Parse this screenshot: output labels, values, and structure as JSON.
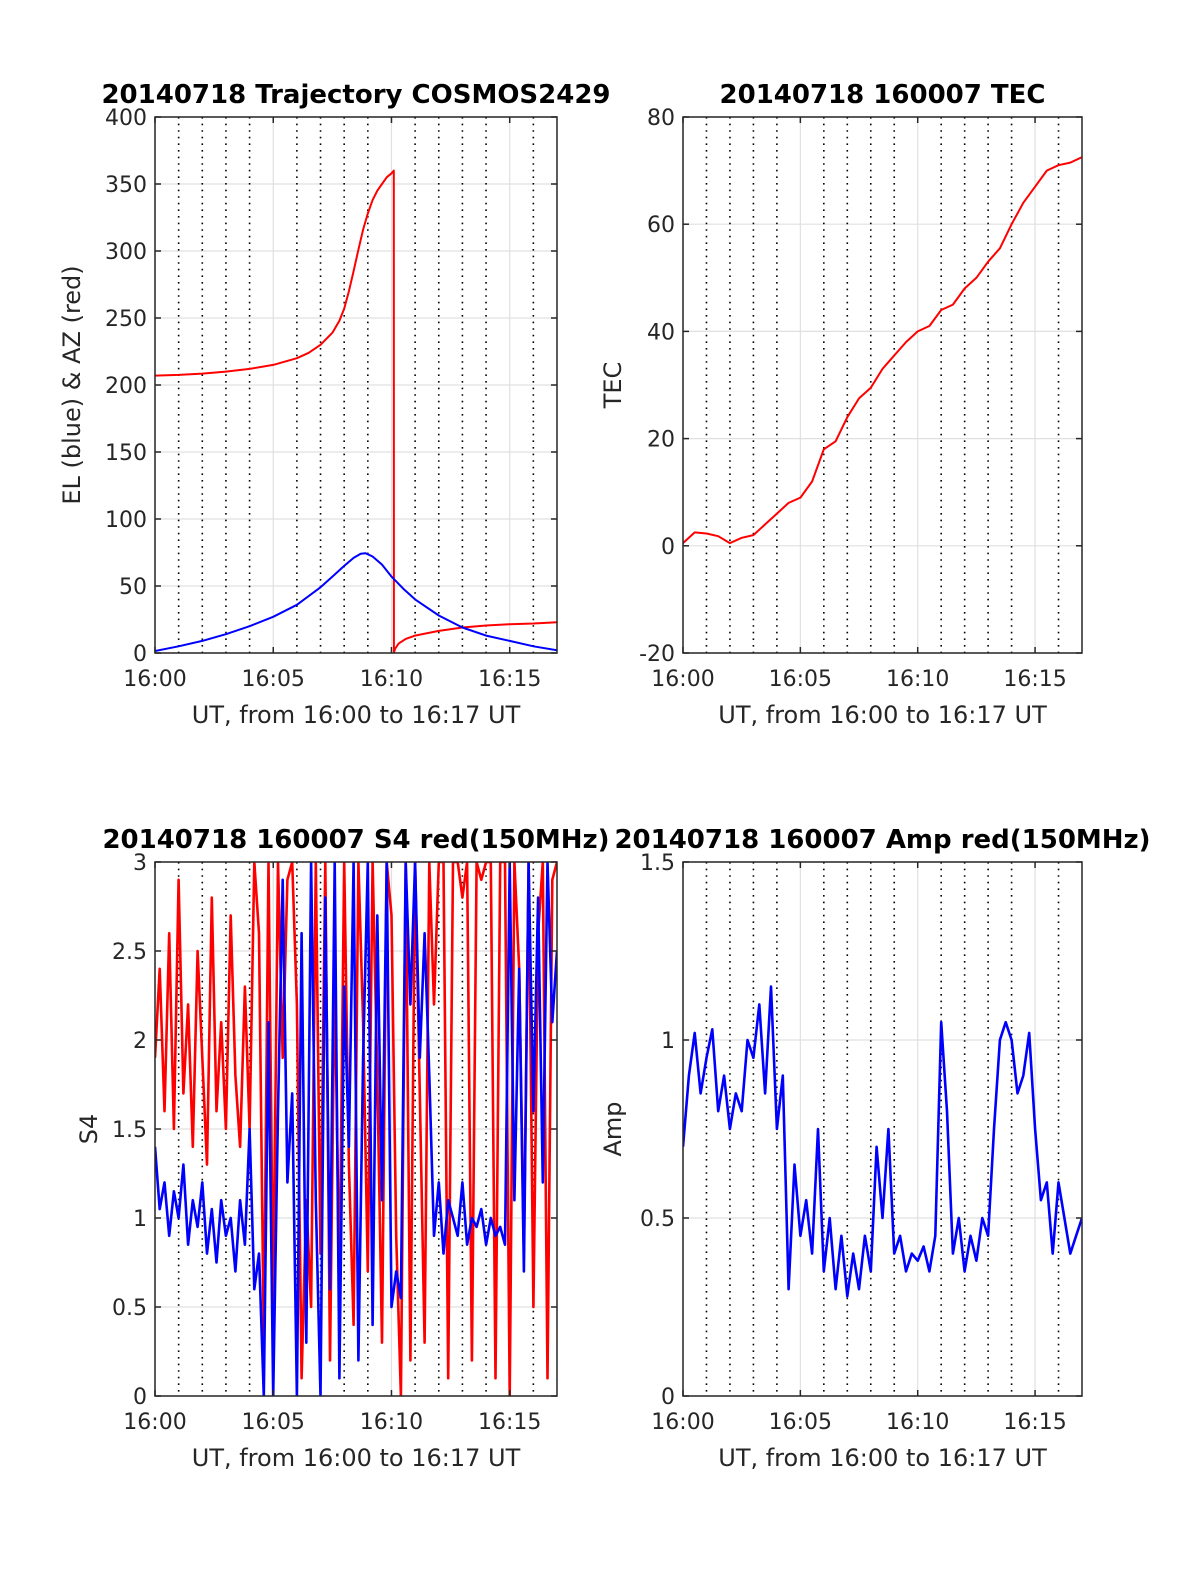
{
  "chart_data": [
    {
      "type": "line",
      "title": "20140718 Trajectory COSMOS2429",
      "xlabel": "UT, from 16:00 to 16:17 UT",
      "ylabel": "EL (blue) & AZ (red)",
      "x_unit": "minutes after 16:00 UT",
      "xlim": [
        0,
        17
      ],
      "ylim": [
        0,
        400
      ],
      "xticks": [
        0,
        5,
        10,
        15
      ],
      "xtick_labels": [
        "16:00",
        "16:05",
        "16:10",
        "16:15"
      ],
      "yticks": [
        0,
        50,
        100,
        150,
        200,
        250,
        300,
        350,
        400
      ],
      "ytick_labels": [
        "0",
        "50",
        "100",
        "150",
        "200",
        "250",
        "300",
        "350",
        "400"
      ],
      "minor_x_gridlines": [
        1,
        2,
        3,
        4,
        6,
        7,
        8,
        9,
        11,
        12,
        13,
        14,
        16
      ],
      "grid": true,
      "series": [
        {
          "color": "#ff0000",
          "x": [
            0,
            1,
            2,
            3,
            4,
            5,
            6,
            6.5,
            7,
            7.5,
            7.8,
            8,
            8.2,
            8.4,
            8.6,
            8.8,
            9,
            9.2,
            9.4,
            9.6,
            9.8,
            10.0,
            10.1,
            10.101,
            10.15,
            10.3,
            10.6,
            11,
            12,
            13,
            14,
            15,
            16,
            17
          ],
          "y": [
            207,
            207.5,
            208.5,
            210,
            212,
            215,
            220,
            224,
            230,
            239,
            248,
            257,
            270,
            285,
            301,
            316,
            328,
            338,
            345,
            350,
            355,
            358,
            360,
            0,
            3,
            7,
            10.5,
            13,
            16.5,
            19,
            20.5,
            21.5,
            22,
            23
          ]
        },
        {
          "color": "#0000ff",
          "x": [
            0,
            1,
            2,
            3,
            4,
            5,
            6,
            7,
            7.5,
            8,
            8.4,
            8.7,
            8.9,
            9.2,
            9.6,
            10,
            10.5,
            11,
            12,
            13,
            14,
            15,
            16,
            17
          ],
          "y": [
            1.5,
            5,
            9,
            14,
            20,
            27,
            36,
            49,
            57,
            65,
            71,
            74,
            74.5,
            72,
            66,
            57,
            48,
            40,
            28,
            19,
            13,
            9,
            5,
            2
          ]
        }
      ]
    },
    {
      "type": "line",
      "title": "20140718 160007 TEC",
      "xlabel": "UT, from 16:00 to 16:17 UT",
      "ylabel": "TEC",
      "x_unit": "minutes after 16:00 UT",
      "xlim": [
        0,
        17
      ],
      "ylim": [
        -20,
        80
      ],
      "xticks": [
        0,
        5,
        10,
        15
      ],
      "xtick_labels": [
        "16:00",
        "16:05",
        "16:10",
        "16:15"
      ],
      "yticks": [
        -20,
        0,
        20,
        40,
        60,
        80
      ],
      "ytick_labels": [
        "-20",
        "0",
        "20",
        "40",
        "60",
        "80"
      ],
      "minor_x_gridlines": [
        1,
        2,
        3,
        4,
        6,
        7,
        8,
        9,
        11,
        12,
        13,
        14,
        16
      ],
      "grid": true,
      "series": [
        {
          "color": "#ff0000",
          "x": [
            0,
            0.5,
            1,
            1.5,
            2,
            2.5,
            3,
            3.5,
            4,
            4.5,
            5,
            5.5,
            6,
            6.5,
            7,
            7.5,
            8,
            8.5,
            9,
            9.5,
            10,
            10.5,
            11,
            11.5,
            12,
            12.5,
            13,
            13.5,
            14,
            14.5,
            15,
            15.5,
            16,
            16.5,
            17
          ],
          "y": [
            0.5,
            2.5,
            2.3,
            1.8,
            0.5,
            1.5,
            2,
            4,
            6,
            8,
            9,
            12,
            18,
            19.5,
            24,
            27.5,
            29.5,
            33,
            35.5,
            38,
            40,
            41,
            44,
            45,
            48,
            50,
            53,
            55.5,
            60,
            64,
            67,
            70,
            71,
            71.5,
            72.5
          ]
        }
      ]
    },
    {
      "type": "line",
      "title": "20140718 160007 S4 red(150MHz)",
      "xlabel": "UT, from 16:00 to 16:17 UT",
      "ylabel": "S4",
      "x_unit": "minutes after 16:00 UT",
      "xlim": [
        0,
        17
      ],
      "ylim": [
        0,
        3
      ],
      "xticks": [
        0,
        5,
        10,
        15
      ],
      "xtick_labels": [
        "16:00",
        "16:05",
        "16:10",
        "16:15"
      ],
      "yticks": [
        0,
        0.5,
        1,
        1.5,
        2,
        2.5,
        3
      ],
      "ytick_labels": [
        "0",
        "0.5",
        "1",
        "1.5",
        "2",
        "2.5",
        "3"
      ],
      "minor_x_gridlines": [
        1,
        2,
        3,
        4,
        6,
        7,
        8,
        9,
        11,
        12,
        13,
        14,
        16
      ],
      "grid": true,
      "series": [
        {
          "color": "#ff0000",
          "x": [
            0,
            0.2,
            0.4,
            0.6,
            0.8,
            1,
            1.2,
            1.4,
            1.6,
            1.8,
            2,
            2.2,
            2.4,
            2.6,
            2.8,
            3,
            3.2,
            3.4,
            3.6,
            3.8,
            4,
            4.2,
            4.4,
            4.6,
            4.8,
            5,
            5.2,
            5.4,
            5.6,
            5.8,
            6,
            6.2,
            6.4,
            6.6,
            6.8,
            7,
            7.2,
            7.4,
            7.6,
            7.8,
            8,
            8.2,
            8.4,
            8.6,
            8.8,
            9,
            9.2,
            9.4,
            9.6,
            9.8,
            10,
            10.2,
            10.4,
            10.6,
            10.8,
            11,
            11.2,
            11.4,
            11.6,
            11.8,
            12,
            12.2,
            12.4,
            12.6,
            12.8,
            13,
            13.2,
            13.4,
            13.6,
            13.8,
            14,
            14.2,
            14.4,
            14.6,
            14.8,
            15,
            15.2,
            15.4,
            15.6,
            15.8,
            16,
            16.2,
            16.4,
            16.6,
            16.8,
            17
          ],
          "y": [
            1.9,
            2.4,
            1.6,
            2.6,
            1.5,
            2.9,
            1.7,
            2.2,
            1.4,
            2.5,
            1.9,
            1.3,
            2.8,
            1.6,
            2.1,
            1.5,
            2.7,
            1.8,
            1.4,
            2.3,
            1.5,
            3,
            2.6,
            0.3,
            3,
            0.5,
            3,
            1.9,
            2.9,
            3,
            2.2,
            0.1,
            1.1,
            0.5,
            3,
            0.8,
            3,
            0.2,
            2.4,
            0.6,
            3,
            1.3,
            0.4,
            3,
            2.1,
            0.7,
            3,
            1.8,
            0.3,
            3,
            2.7,
            0.9,
            0,
            3,
            0.2,
            3,
            1.7,
            0.3,
            3,
            2.2,
            3,
            3,
            0.1,
            3,
            3,
            2.8,
            3,
            0.2,
            3,
            2.9,
            3,
            3,
            0.1,
            3,
            3,
            0,
            3,
            2.4,
            0.8,
            3,
            0.5,
            2.6,
            3,
            0.1,
            2.9,
            3
          ]
        },
        {
          "color": "#0000ff",
          "x": [
            0,
            0.2,
            0.4,
            0.6,
            0.8,
            1,
            1.2,
            1.4,
            1.6,
            1.8,
            2,
            2.2,
            2.4,
            2.6,
            2.8,
            3,
            3.2,
            3.4,
            3.6,
            3.8,
            4,
            4.2,
            4.4,
            4.6,
            4.8,
            5,
            5.2,
            5.4,
            5.6,
            5.8,
            6,
            6.2,
            6.4,
            6.6,
            6.8,
            7,
            7.2,
            7.4,
            7.6,
            7.8,
            8,
            8.2,
            8.4,
            8.6,
            8.8,
            9,
            9.2,
            9.4,
            9.6,
            9.8,
            10,
            10.2,
            10.4,
            10.6,
            10.8,
            11,
            11.2,
            11.4,
            11.6,
            11.8,
            12,
            12.2,
            12.4,
            12.6,
            12.8,
            13,
            13.2,
            13.4,
            13.6,
            13.8,
            14,
            14.2,
            14.4,
            14.6,
            14.8,
            15,
            15.2,
            15.4,
            15.6,
            15.8,
            16,
            16.2,
            16.4,
            16.6,
            16.8,
            17
          ],
          "y": [
            1.4,
            1.05,
            1.2,
            0.9,
            1.15,
            1.0,
            1.3,
            0.85,
            1.1,
            0.95,
            1.2,
            0.8,
            1.05,
            0.75,
            1.1,
            0.9,
            1.0,
            0.7,
            1.1,
            0.85,
            1.5,
            0.6,
            0.8,
            0,
            2.1,
            0,
            1.6,
            2.9,
            1.2,
            1.7,
            0,
            2.6,
            0.3,
            3,
            1.1,
            0,
            2.8,
            0.6,
            3,
            0.1,
            2.3,
            1.4,
            3,
            0.2,
            1.9,
            3,
            0.4,
            2.7,
            1.1,
            3,
            0.5,
            0.7,
            0.55,
            3,
            2.2,
            3,
            1.9,
            2.6,
            1.8,
            0.9,
            1.2,
            0.8,
            1.1,
            1.0,
            0.9,
            1.2,
            0.85,
            1.0,
            0.95,
            1.05,
            0.85,
            1.0,
            0.9,
            0.95,
            0.85,
            3,
            1.1,
            2.4,
            0.7,
            3,
            1.6,
            2.8,
            1.2,
            3,
            2.1,
            2.5
          ]
        }
      ]
    },
    {
      "type": "line",
      "title": "20140718 160007 Amp red(150MHz)",
      "xlabel": "UT, from 16:00 to 16:17 UT",
      "ylabel": "Amp",
      "x_unit": "minutes after 16:00 UT",
      "xlim": [
        0,
        17
      ],
      "ylim": [
        0,
        1.5
      ],
      "xticks": [
        0,
        5,
        10,
        15
      ],
      "xtick_labels": [
        "16:00",
        "16:05",
        "16:10",
        "16:15"
      ],
      "yticks": [
        0,
        0.5,
        1,
        1.5
      ],
      "ytick_labels": [
        "0",
        "0.5",
        "1",
        "1.5"
      ],
      "minor_x_gridlines": [
        1,
        2,
        3,
        4,
        6,
        7,
        8,
        9,
        11,
        12,
        13,
        14,
        16
      ],
      "grid": true,
      "series": [
        {
          "color": "#0000ff",
          "x": [
            0,
            0.25,
            0.5,
            0.75,
            1,
            1.25,
            1.5,
            1.75,
            2,
            2.25,
            2.5,
            2.75,
            3,
            3.25,
            3.5,
            3.75,
            4,
            4.25,
            4.5,
            4.75,
            5,
            5.25,
            5.5,
            5.75,
            6,
            6.25,
            6.5,
            6.75,
            7,
            7.25,
            7.5,
            7.75,
            8,
            8.25,
            8.5,
            8.75,
            9,
            9.25,
            9.5,
            9.75,
            10,
            10.25,
            10.5,
            10.75,
            11,
            11.25,
            11.5,
            11.75,
            12,
            12.25,
            12.5,
            12.75,
            13,
            13.25,
            13.5,
            13.75,
            14,
            14.25,
            14.5,
            14.75,
            15,
            15.25,
            15.5,
            15.75,
            16,
            16.25,
            16.5,
            16.75,
            17
          ],
          "y": [
            0.7,
            0.9,
            1.02,
            0.85,
            0.95,
            1.03,
            0.8,
            0.9,
            0.75,
            0.85,
            0.8,
            1.0,
            0.95,
            1.1,
            0.85,
            1.15,
            0.75,
            0.9,
            0.3,
            0.65,
            0.45,
            0.55,
            0.4,
            0.75,
            0.35,
            0.5,
            0.3,
            0.45,
            0.28,
            0.4,
            0.3,
            0.45,
            0.35,
            0.7,
            0.5,
            0.75,
            0.4,
            0.45,
            0.35,
            0.4,
            0.38,
            0.42,
            0.35,
            0.45,
            1.05,
            0.8,
            0.4,
            0.5,
            0.35,
            0.45,
            0.38,
            0.5,
            0.45,
            0.75,
            1.0,
            1.05,
            1.0,
            0.85,
            0.9,
            1.02,
            0.75,
            0.55,
            0.6,
            0.4,
            0.6,
            0.5,
            0.4,
            0.45,
            0.5
          ]
        }
      ]
    }
  ]
}
